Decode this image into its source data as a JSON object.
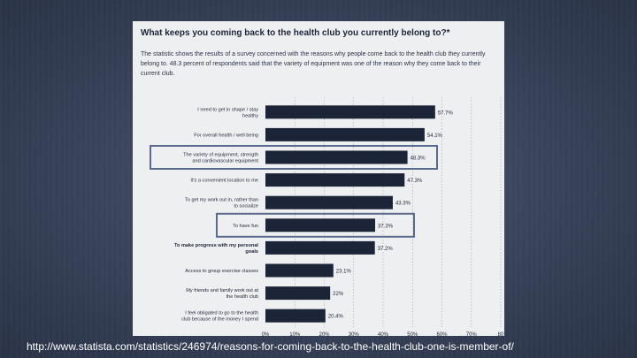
{
  "colors": {
    "bar": "#1c2538",
    "highlight": "#5a6a8c",
    "grid": "#9aa3b5",
    "text": "#1c2538"
  },
  "chart_data": {
    "type": "bar",
    "orientation": "horizontal",
    "title": "What keeps you coming back to the health club you currently belong to?*",
    "subtitle": "The statistic shows the results of a survey concerned with the reasons why people come back to the health club they currently belong to. 48.3 percent of respondents said that the variety of equipment was one of the reason why they come back to their current club.",
    "categories": [
      "I need to get in shape / stay healthy",
      "For overall health / well being",
      "The variety of equipment, strength and cardiovascular equipment",
      "It's a convenient location to me",
      "To get my work out in, rather than to socialize",
      "To have fun",
      "To make progress with my personal goals",
      "Access to group exercise classes",
      "My friends and family work out at the health club",
      "I feel obligated to go to the health club because of the money I spend"
    ],
    "values": [
      57.7,
      54.1,
      48.3,
      47.3,
      43.3,
      37.3,
      37.2,
      23.1,
      22,
      20.4
    ],
    "data_labels": [
      "57.7%",
      "54.1%",
      "48.3%",
      "47.3%",
      "43.3%",
      "37.3%",
      "37.2%",
      "23.1%",
      "22%",
      "20.4%"
    ],
    "highlighted": [
      2,
      5
    ],
    "xticks": [
      "0%",
      "10%",
      "20%",
      "30%",
      "40%",
      "50%",
      "60%",
      "70%",
      "80"
    ],
    "xlim": [
      0,
      80
    ],
    "grid": true
  },
  "footer": {
    "url": "http://www.statista.com/statistics/246974/reasons-for-coming-back-to-the-health-club-one-is-member-of/"
  }
}
